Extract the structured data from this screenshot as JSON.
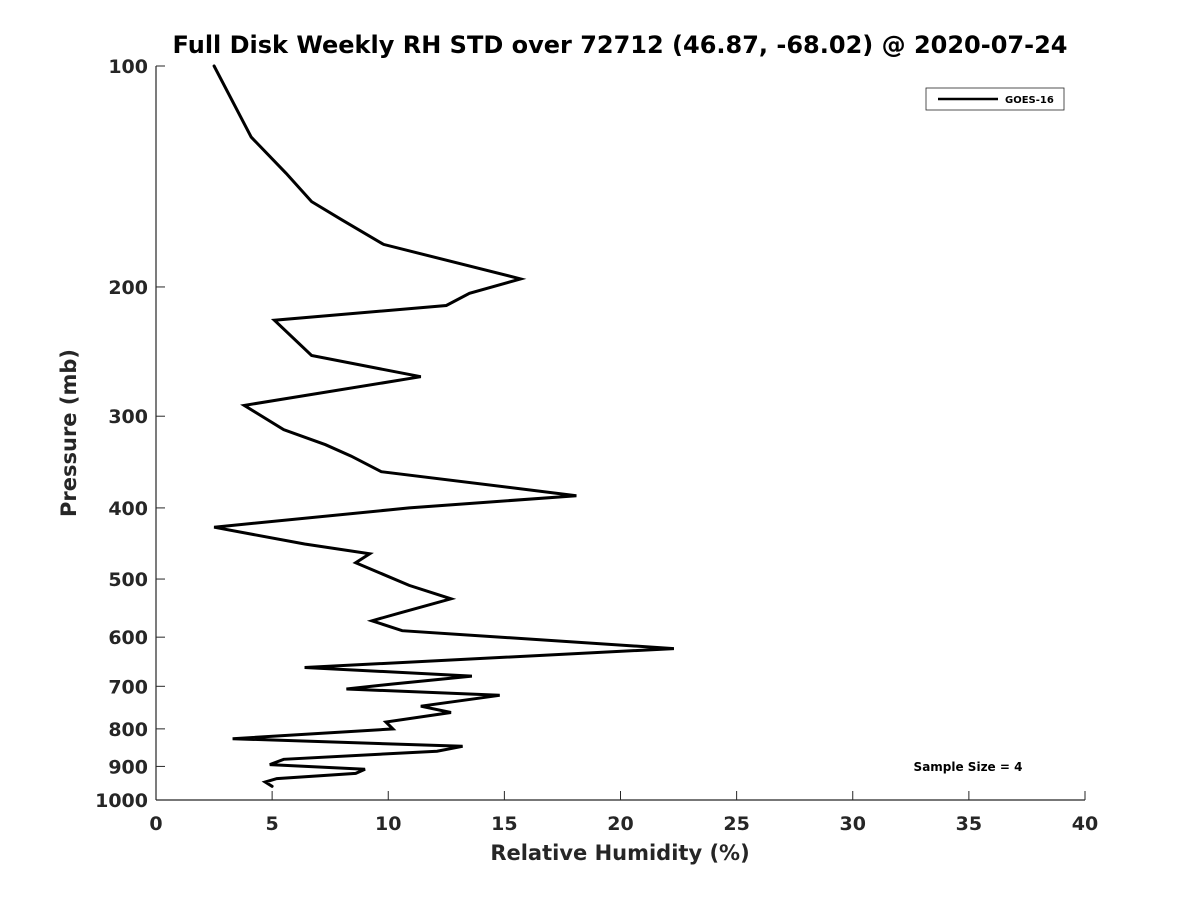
{
  "chart_data": {
    "type": "line",
    "title": "Full Disk Weekly RH STD over 72712 (46.87, -68.02) @ 2020-07-24",
    "xlabel": "Relative Humidity (%)",
    "ylabel": "Pressure (mb)",
    "xlim": [
      0,
      40
    ],
    "ylim": [
      100,
      1000
    ],
    "y_scale": "log",
    "y_reversed": true,
    "grid": false,
    "legend_position": "top-right",
    "x_ticks": [
      "0",
      "5",
      "10",
      "15",
      "20",
      "25",
      "30",
      "35",
      "40"
    ],
    "y_ticks": [
      "100",
      "200",
      "300",
      "400",
      "500",
      "600",
      "700",
      "800",
      "900",
      "1000"
    ],
    "series": [
      {
        "name": "GOES-16",
        "color": "#000000",
        "points": [
          [
            2.5,
            100
          ],
          [
            4.1,
            125
          ],
          [
            5.6,
            140
          ],
          [
            6.7,
            153
          ],
          [
            8.0,
            162
          ],
          [
            9.8,
            175
          ],
          [
            15.7,
            195
          ],
          [
            13.5,
            204
          ],
          [
            12.5,
            212
          ],
          [
            5.1,
            222
          ],
          [
            6.7,
            248
          ],
          [
            11.4,
            265
          ],
          [
            3.8,
            290
          ],
          [
            5.5,
            313
          ],
          [
            7.3,
            328
          ],
          [
            8.4,
            340
          ],
          [
            9.7,
            357
          ],
          [
            18.1,
            385
          ],
          [
            10.9,
            400
          ],
          [
            2.5,
            425
          ],
          [
            6.4,
            448
          ],
          [
            9.2,
            462
          ],
          [
            8.6,
            475
          ],
          [
            10.9,
            510
          ],
          [
            12.7,
            532
          ],
          [
            10.5,
            556
          ],
          [
            9.3,
            570
          ],
          [
            10.6,
            588
          ],
          [
            22.3,
            622
          ],
          [
            6.4,
            660
          ],
          [
            13.6,
            678
          ],
          [
            10.2,
            695
          ],
          [
            8.2,
            706
          ],
          [
            14.8,
            720
          ],
          [
            11.4,
            745
          ],
          [
            12.7,
            760
          ],
          [
            9.9,
            783
          ],
          [
            10.2,
            800
          ],
          [
            3.3,
            825
          ],
          [
            13.2,
            845
          ],
          [
            12.1,
            858
          ],
          [
            5.5,
            880
          ],
          [
            4.9,
            895
          ],
          [
            9.0,
            908
          ],
          [
            8.6,
            920
          ],
          [
            5.2,
            935
          ],
          [
            4.7,
            945
          ],
          [
            5.0,
            958
          ]
        ]
      }
    ],
    "annotations": [
      {
        "text": "Sample Size = 4"
      }
    ]
  }
}
